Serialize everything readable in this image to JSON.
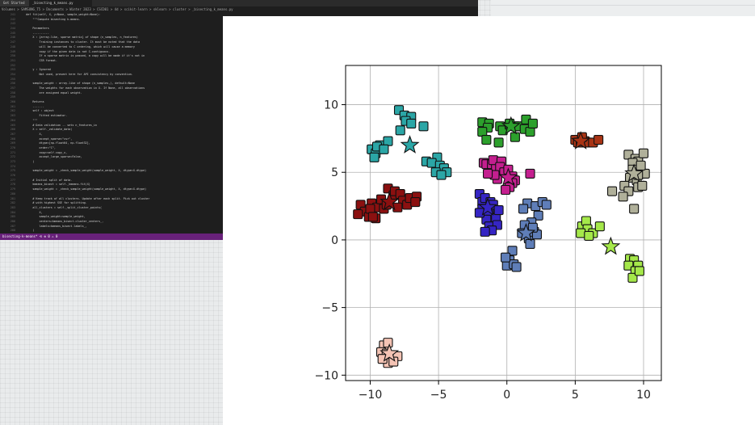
{
  "editor": {
    "tabs": [
      "Get Started",
      "_bisecting_k_means.py",
      "bisecting-k-means"
    ],
    "breadcrumb": "Volumes > SAMSUNG_T5 > Documents > Winter 2023 > CSCD01 > 4d > scikit-learn > sklearn > cluster > _bisecting_k_means.py",
    "line_numbers": [
      "241",
      "242",
      "243",
      "244",
      "245",
      "246",
      "247",
      "248",
      "249",
      "250",
      "251",
      "252",
      "253",
      "254",
      "255",
      "256",
      "257",
      "258",
      "259",
      "260",
      "261",
      "262",
      "263",
      "264",
      "265",
      "266",
      "267",
      "268",
      "269",
      "270",
      "271",
      "272",
      "273",
      "274",
      "275",
      "276",
      "277",
      "278",
      "279",
      "280",
      "281",
      "282",
      "283",
      "284",
      "285",
      "286",
      "287",
      "288"
    ],
    "lines": [
      {
        "t": "    def fit(self, X, y=None, sample_weight=None):",
        "c": "c-fn"
      },
      {
        "t": "        \"\"\"Compute bisecting k-means.",
        "c": "c-doc"
      },
      {
        "t": "",
        "c": ""
      },
      {
        "t": "        Parameters",
        "c": "c-doc"
      },
      {
        "t": "        ----------",
        "c": "c-doc"
      },
      {
        "t": "        X : {array-like, sparse matrix} of shape (n_samples, n_features)",
        "c": "c-doc"
      },
      {
        "t": "            Training instances to cluster. It must be noted that the data",
        "c": "c-doc"
      },
      {
        "t": "            will be converted to C ordering, which will cause a memory",
        "c": "c-doc"
      },
      {
        "t": "            copy if the given data is not C-contiguous.",
        "c": "c-doc"
      },
      {
        "t": "            If a sparse matrix is passed, a copy will be made if it's not in",
        "c": "c-doc"
      },
      {
        "t": "            CSR format.",
        "c": "c-doc"
      },
      {
        "t": "",
        "c": ""
      },
      {
        "t": "        y : Ignored",
        "c": "c-doc"
      },
      {
        "t": "            Not used, present here for API consistency by convention.",
        "c": "c-doc"
      },
      {
        "t": "",
        "c": ""
      },
      {
        "t": "        sample_weight : array-like of shape (n_samples,), default=None",
        "c": "c-doc"
      },
      {
        "t": "            The weights for each observation in X. If None, all observations",
        "c": "c-doc"
      },
      {
        "t": "            are assigned equal weight.",
        "c": "c-doc"
      },
      {
        "t": "",
        "c": ""
      },
      {
        "t": "        Returns",
        "c": "c-doc"
      },
      {
        "t": "        -------",
        "c": "c-doc"
      },
      {
        "t": "        self : object",
        "c": "c-doc"
      },
      {
        "t": "            Fitted estimator.",
        "c": "c-doc"
      },
      {
        "t": "        \"\"\"",
        "c": "c-doc"
      },
      {
        "t": "        # Data validation -- sets n_features_in",
        "c": "c-com"
      },
      {
        "t": "        X = self._validate_data(",
        "c": "c-var"
      },
      {
        "t": "            X,",
        "c": "c-var"
      },
      {
        "t": "            accept_sparse=\"csr\",",
        "c": "c-var"
      },
      {
        "t": "            dtype=[np.float64, np.float32],",
        "c": "c-var"
      },
      {
        "t": "            order=\"C\",",
        "c": "c-var"
      },
      {
        "t": "            copy=self.copy_x,",
        "c": "c-var"
      },
      {
        "t": "            accept_large_sparse=False,",
        "c": "c-var"
      },
      {
        "t": "        )",
        "c": ""
      },
      {
        "t": "",
        "c": ""
      },
      {
        "t": "        sample_weight = _check_sample_weight(sample_weight, X, dtype=X.dtype)",
        "c": "c-var"
      },
      {
        "t": "",
        "c": ""
      },
      {
        "t": "        # Initial split of data.",
        "c": "c-com"
      },
      {
        "t": "        kmeans_bisect = self._kmeans.fit(X)",
        "c": "c-var"
      },
      {
        "t": "        sample_weight = _check_sample_weight(sample_weight, X, dtype=X.dtype)",
        "c": "c-var"
      },
      {
        "t": "",
        "c": ""
      },
      {
        "t": "        # Keep track of all clusters. Update after each split. Pick out cluster",
        "c": "c-com"
      },
      {
        "t": "        # with highest SSE for splitting.",
        "c": "c-com"
      },
      {
        "t": "        all_clusters = self._split_cluster_points(",
        "c": "c-var"
      },
      {
        "t": "            X,",
        "c": "c-var"
      },
      {
        "t": "            sample_weight=sample_weight,",
        "c": "c-var"
      },
      {
        "t": "            centers=kmeans_bisect.cluster_centers_,",
        "c": "c-var"
      },
      {
        "t": "            labels=kmeans_bisect.labels_,",
        "c": "c-var"
      },
      {
        "t": "        )",
        "c": ""
      }
    ],
    "status_text": "bisecting-k-means*   ⟲   ⊗ 0 ⚠ 0"
  },
  "figure": {
    "title": "",
    "xlabel": "",
    "ylabel": ""
  },
  "chart_data": {
    "type": "scatter",
    "xlim": [
      -11.8,
      11.3
    ],
    "ylim": [
      -10.4,
      12.9
    ],
    "xticks": [
      -10,
      -5,
      0,
      5,
      10
    ],
    "yticks": [
      -10,
      -5,
      0,
      5,
      10
    ],
    "xtick_labels": [
      "−10",
      "−5",
      "0",
      "5",
      "10"
    ],
    "ytick_labels": [
      "−10",
      "−5",
      "0",
      "5",
      "10"
    ],
    "grid": true,
    "marker": "square",
    "center_marker": "star",
    "clusters": [
      {
        "color": "#2ba6a6",
        "center": [
          -7.1,
          7.0
        ],
        "points": [
          [
            -7.9,
            9.6
          ],
          [
            -7.5,
            9.2
          ],
          [
            -7.0,
            9.1
          ],
          [
            -7.4,
            8.8
          ],
          [
            -7.0,
            8.6
          ],
          [
            -7.8,
            8.1
          ],
          [
            -6.1,
            8.4
          ],
          [
            -9.9,
            6.7
          ],
          [
            -9.6,
            6.4
          ],
          [
            -9.3,
            7.0
          ],
          [
            -9.5,
            6.9
          ],
          [
            -8.7,
            7.3
          ],
          [
            -9.7,
            6.1
          ],
          [
            -9.0,
            6.7
          ],
          [
            -5.1,
            6.1
          ],
          [
            -5.9,
            5.8
          ],
          [
            -5.5,
            5.7
          ],
          [
            -4.9,
            5.5
          ],
          [
            -4.6,
            5.3
          ],
          [
            -5.2,
            5.0
          ],
          [
            -4.4,
            5.0
          ],
          [
            -4.8,
            4.8
          ]
        ]
      },
      {
        "color": "#2ca02c",
        "center": [
          0.3,
          8.4
        ],
        "points": [
          [
            -1.8,
            8.7
          ],
          [
            -1.3,
            8.6
          ],
          [
            -1.4,
            8.3
          ],
          [
            -1.8,
            8.0
          ],
          [
            -1.5,
            7.4
          ],
          [
            -0.5,
            8.4
          ],
          [
            -0.3,
            8.1
          ],
          [
            0.2,
            8.5
          ],
          [
            0.6,
            8.4
          ],
          [
            0.9,
            8.4
          ],
          [
            1.4,
            8.9
          ],
          [
            1.3,
            8.2
          ],
          [
            1.7,
            8.0
          ],
          [
            1.9,
            8.6
          ],
          [
            0.6,
            7.6
          ],
          [
            -0.6,
            7.2
          ],
          [
            0.2,
            8.6
          ]
        ]
      },
      {
        "color": "#a83415",
        "center": [
          5.4,
          7.3
        ],
        "points": [
          [
            5.0,
            7.4
          ],
          [
            5.2,
            7.2
          ],
          [
            5.5,
            7.5
          ],
          [
            5.4,
            7.2
          ],
          [
            5.7,
            7.3
          ],
          [
            5.9,
            7.2
          ],
          [
            5.5,
            7.6
          ],
          [
            6.3,
            7.2
          ],
          [
            6.7,
            7.4
          ]
        ]
      },
      {
        "color": "#b0b09a",
        "center": [
          9.3,
          4.9
        ],
        "points": [
          [
            8.9,
            6.3
          ],
          [
            9.4,
            6.0
          ],
          [
            9.6,
            5.8
          ],
          [
            10.0,
            6.4
          ],
          [
            10.1,
            4.9
          ],
          [
            9.2,
            5.7
          ],
          [
            9.2,
            5.2
          ],
          [
            9.0,
            4.6
          ],
          [
            9.5,
            4.4
          ],
          [
            8.6,
            4.0
          ],
          [
            8.9,
            3.6
          ],
          [
            8.5,
            3.2
          ],
          [
            7.7,
            3.6
          ],
          [
            9.6,
            3.9
          ],
          [
            9.9,
            4.0
          ],
          [
            9.3,
            2.3
          ],
          [
            9.8,
            5.5
          ],
          [
            9.6,
            4.8
          ]
        ]
      },
      {
        "color": "#c41f8f",
        "center": [
          0.1,
          4.6
        ],
        "points": [
          [
            -1.7,
            5.7
          ],
          [
            -1.5,
            5.6
          ],
          [
            -1.1,
            5.6
          ],
          [
            -0.8,
            5.4
          ],
          [
            -1.0,
            5.9
          ],
          [
            -0.4,
            5.8
          ],
          [
            -0.5,
            5.4
          ],
          [
            -0.2,
            5.0
          ],
          [
            0.1,
            5.2
          ],
          [
            0.4,
            4.7
          ],
          [
            0.6,
            4.4
          ],
          [
            0.4,
            4.2
          ],
          [
            0.2,
            3.9
          ],
          [
            -0.1,
            3.7
          ],
          [
            -0.7,
            4.5
          ],
          [
            -0.9,
            4.8
          ],
          [
            1.7,
            4.9
          ],
          [
            -1.4,
            4.9
          ]
        ]
      },
      {
        "color": "#8b1010",
        "center": [
          -8.6,
          2.8
        ],
        "points": [
          [
            -10.7,
            2.6
          ],
          [
            -10.4,
            2.1
          ],
          [
            -10.9,
            1.9
          ],
          [
            -10.1,
            1.7
          ],
          [
            -9.9,
            2.7
          ],
          [
            -9.5,
            2.4
          ],
          [
            -9.6,
            1.6
          ],
          [
            -9.2,
            3.0
          ],
          [
            -9.0,
            2.3
          ],
          [
            -8.8,
            2.6
          ],
          [
            -8.7,
            3.8
          ],
          [
            -8.3,
            3.3
          ],
          [
            -8.2,
            3.6
          ],
          [
            -7.8,
            3.4
          ],
          [
            -7.6,
            2.9
          ],
          [
            -7.3,
            2.6
          ],
          [
            -7.1,
            3.1
          ],
          [
            -6.6,
            3.2
          ],
          [
            -6.7,
            2.8
          ],
          [
            -8.0,
            2.4
          ],
          [
            -10.0,
            2.3
          ],
          [
            -9.8,
            1.7
          ]
        ]
      },
      {
        "color": "#3525c4",
        "center": [
          -1.4,
          2.4
        ],
        "points": [
          [
            -2.0,
            3.4
          ],
          [
            -1.8,
            2.8
          ],
          [
            -1.6,
            3.1
          ],
          [
            -1.2,
            2.8
          ],
          [
            -1.8,
            2.3
          ],
          [
            -1.3,
            2.2
          ],
          [
            -1.0,
            2.6
          ],
          [
            -1.4,
            1.9
          ],
          [
            -0.8,
            1.6
          ],
          [
            -1.5,
            1.5
          ],
          [
            -1.3,
            1.0
          ],
          [
            -0.7,
            1.1
          ],
          [
            -1.1,
            0.7
          ],
          [
            -1.6,
            0.6
          ],
          [
            -2.0,
            2.0
          ],
          [
            -0.6,
            2.2
          ]
        ]
      },
      {
        "color": "#5f7eb8",
        "center": [
          1.4,
          0.5
        ],
        "points": [
          [
            1.5,
            2.7
          ],
          [
            2.1,
            2.5
          ],
          [
            2.6,
            2.8
          ],
          [
            2.9,
            2.6
          ],
          [
            2.3,
            1.8
          ],
          [
            1.8,
            1.3
          ],
          [
            1.3,
            1.1
          ],
          [
            1.1,
            0.5
          ],
          [
            1.6,
            0.1
          ],
          [
            2.0,
            0.6
          ],
          [
            2.2,
            0.4
          ],
          [
            1.7,
            -0.3
          ],
          [
            1.9,
            0.9
          ],
          [
            0.4,
            -0.8
          ],
          [
            0.2,
            -1.5
          ],
          [
            0.0,
            -1.9
          ],
          [
            0.5,
            -1.8
          ],
          [
            0.7,
            -2.0
          ],
          [
            -0.1,
            -1.3
          ],
          [
            1.2,
            2.3
          ]
        ]
      },
      {
        "color": "#a5e84a",
        "center": [
          7.6,
          -0.5
        ],
        "points": [
          [
            5.5,
            1.0
          ],
          [
            5.8,
            1.4
          ],
          [
            5.9,
            0.8
          ],
          [
            6.3,
            0.5
          ],
          [
            5.4,
            0.5
          ],
          [
            6.0,
            0.3
          ],
          [
            6.8,
            1.0
          ],
          [
            9.0,
            -1.4
          ],
          [
            9.3,
            -1.5
          ],
          [
            9.6,
            -1.9
          ],
          [
            8.9,
            -1.9
          ],
          [
            9.4,
            -2.3
          ],
          [
            9.2,
            -2.8
          ],
          [
            9.7,
            -2.3
          ]
        ]
      },
      {
        "color": "#f4c3b4",
        "center": [
          -8.6,
          -8.4
        ],
        "points": [
          [
            -9.0,
            -7.8
          ],
          [
            -9.2,
            -8.3
          ],
          [
            -8.7,
            -7.6
          ],
          [
            -8.8,
            -8.4
          ],
          [
            -8.4,
            -8.6
          ],
          [
            -8.0,
            -8.6
          ],
          [
            -8.7,
            -9.1
          ],
          [
            -9.1,
            -8.8
          ],
          [
            -8.3,
            -9.0
          ]
        ]
      }
    ]
  }
}
